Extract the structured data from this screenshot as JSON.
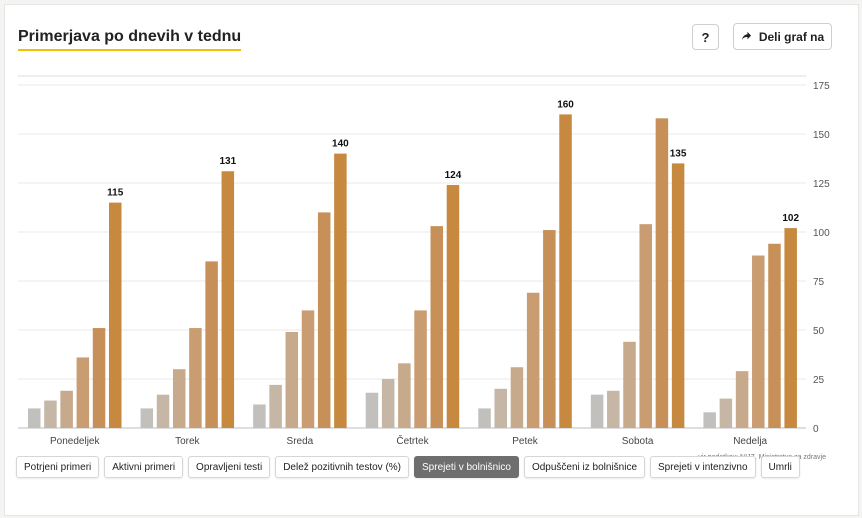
{
  "header": {
    "title": "Primerjava po dnevih v tednu",
    "help_label": "?",
    "share_label": "Deli graf na"
  },
  "source_note": "vir podatkov: NIJZ, Ministrstvo za zdravje",
  "colors": {
    "accent_underline": "#f2c200",
    "series": [
      "#c2c0bd",
      "#c5b6a6",
      "#c7a98b",
      "#c99c72",
      "#c89059",
      "#c6893f",
      "#c08540"
    ]
  },
  "tabs": [
    {
      "label": "Potrjeni primeri",
      "active": false
    },
    {
      "label": "Aktivni primeri",
      "active": false
    },
    {
      "label": "Opravljeni testi",
      "active": false
    },
    {
      "label": "Delež pozitivnih testov (%)",
      "active": false
    },
    {
      "label": "Sprejeti v bolnišnico",
      "active": true
    },
    {
      "label": "Odpuščeni iz bolnišnice",
      "active": false
    },
    {
      "label": "Sprejeti v intenzivno",
      "active": false
    },
    {
      "label": "Umrli",
      "active": false
    }
  ],
  "chart_data": {
    "type": "bar",
    "title": "Primerjava po dnevih v tednu",
    "categories": [
      "Ponedeljek",
      "Torek",
      "Sreda",
      "Četrtek",
      "Petek",
      "Sobota",
      "Nedelja"
    ],
    "ylim": [
      0,
      175
    ],
    "yticks": [
      "0",
      "25",
      "50",
      "75",
      "100",
      "125",
      "150",
      "175"
    ],
    "y_axis_position": "right",
    "grid": true,
    "groups": [
      {
        "values": [
          10,
          14,
          19,
          36,
          51,
          115
        ],
        "label": "115"
      },
      {
        "values": [
          10,
          17,
          30,
          51,
          85,
          131
        ],
        "label": "131"
      },
      {
        "values": [
          12,
          22,
          49,
          60,
          110,
          140
        ],
        "label": "140"
      },
      {
        "values": [
          18,
          25,
          33,
          60,
          103,
          124
        ],
        "label": "124"
      },
      {
        "values": [
          10,
          20,
          31,
          69,
          101,
          160
        ],
        "label": "160"
      },
      {
        "values": [
          17,
          19,
          44,
          104,
          158,
          135
        ],
        "label": "135"
      },
      {
        "values": [
          8,
          15,
          29,
          88,
          94,
          102
        ],
        "label": "102"
      }
    ]
  }
}
